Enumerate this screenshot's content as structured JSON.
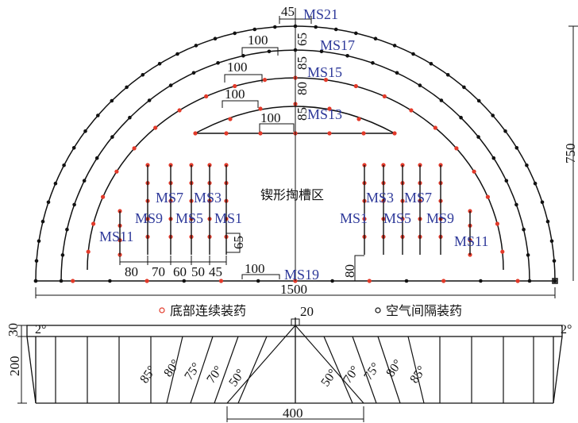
{
  "colors": {
    "charge_red": "#e23a2a",
    "ms_blue": "#2f3a9a",
    "line": "#111111"
  },
  "top_view": {
    "center_label": "锲形掏槽区",
    "ms_labels": {
      "ms21": "MS21",
      "ms17": "MS17",
      "ms15": "MS15",
      "ms13": "MS13",
      "ms19": "MS19",
      "ms7_l": "MS7",
      "ms3_l": "MS3",
      "ms9_l": "MS9",
      "ms5_l": "MS5",
      "ms1_l": "MS1",
      "ms11_l": "MS11",
      "ms3_r": "MS3",
      "ms7_r": "MS7",
      "ms1_r": "MS1",
      "ms5_r": "MS5",
      "ms9_r": "MS9",
      "ms11_r": "MS11"
    },
    "dims": {
      "d45": "45",
      "d65_top": "65",
      "d85_a": "85",
      "d80": "80",
      "d85_b": "85",
      "d100_a": "100",
      "d100_b": "100",
      "d100_c": "100",
      "d100_d": "100",
      "d100_e": "100",
      "d750": "750",
      "d1500": "1500",
      "d65_side": "65",
      "d80_side": "80",
      "b80": "80",
      "b70": "70",
      "b60": "60",
      "b50": "50",
      "b45": "45"
    }
  },
  "legend": {
    "bottom_charge": "底部连续装药",
    "air_gap_charge": "空气间隔装药"
  },
  "section_view": {
    "dims": {
      "d20": "20",
      "d30": "30",
      "d200": "200",
      "d400": "400",
      "angle_left": "2°",
      "angle_right": "2°"
    },
    "angles_left": [
      "85°",
      "80°",
      "75°",
      "70°",
      "50°"
    ],
    "angles_right": [
      "50°",
      "70°",
      "75°",
      "80°",
      "85°"
    ]
  }
}
